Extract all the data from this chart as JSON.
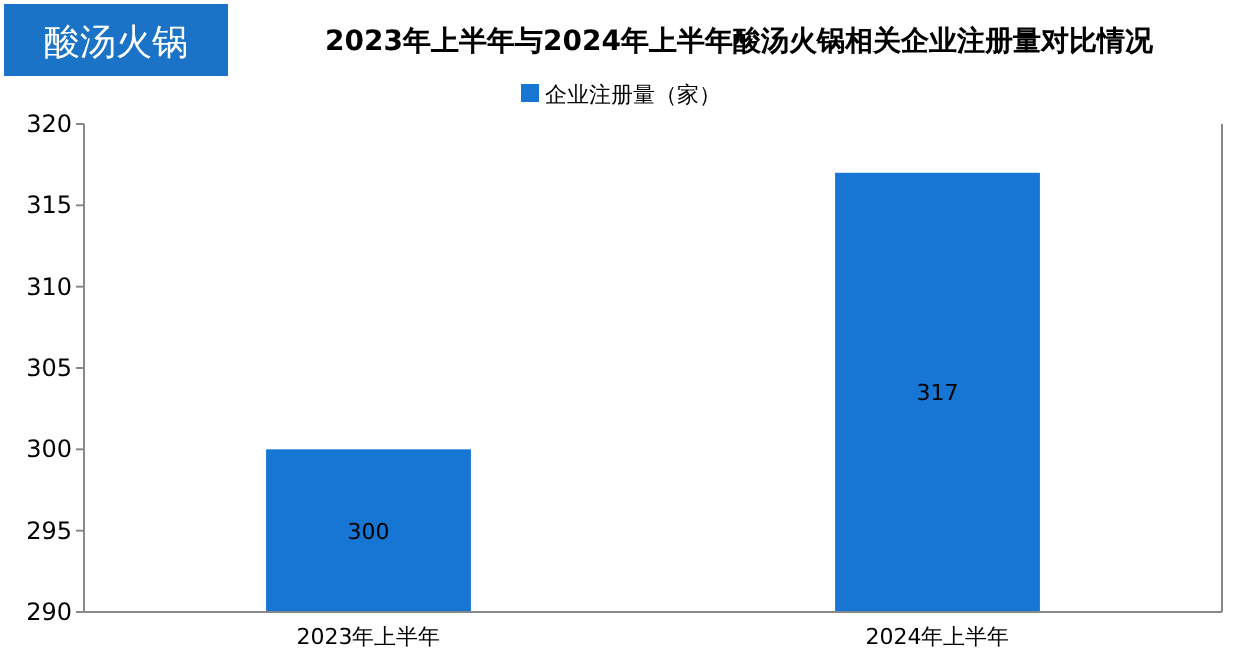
{
  "chart_data": {
    "type": "bar",
    "title": "2023年上半年与2024年上半年酸汤火锅相关企业注册量对比情况",
    "annotations": [
      "酸汤火锅"
    ],
    "categories": [
      "2023年上半年",
      "2024年上半年"
    ],
    "series": [
      {
        "name": "企业注册量（家）",
        "color": "#1775d3",
        "values": [
          300,
          317
        ]
      }
    ],
    "ylim": [
      290,
      320
    ],
    "yticks": [
      290,
      295,
      300,
      305,
      310,
      315,
      320
    ],
    "grid": false,
    "legend": "top",
    "data_labels": true
  }
}
